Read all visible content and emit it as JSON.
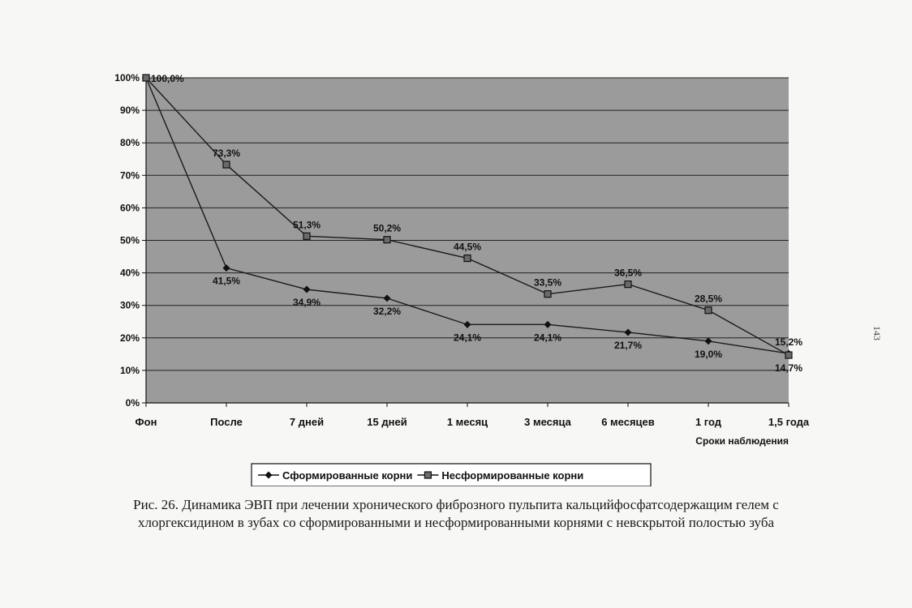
{
  "chart_data": {
    "type": "line",
    "categories": [
      "Фон",
      "После",
      "7 дней",
      "15 дней",
      "1 месяц",
      "3 месяца",
      "6 месяцев",
      "1 год",
      "1,5 года"
    ],
    "series": [
      {
        "name": "Сформированные корни",
        "values": [
          100.0,
          41.5,
          34.9,
          32.2,
          24.1,
          24.1,
          21.7,
          19.0,
          15.2
        ],
        "labels": [
          "100,0%",
          "41,5%",
          "34,9%",
          "32,2%",
          "24,1%",
          "24,1%",
          "21,7%",
          "19,0%",
          "15,2%"
        ],
        "marker": "diamond",
        "label_pos": [
          "",
          "below",
          "below",
          "below",
          "below",
          "below",
          "below",
          "below",
          "above"
        ]
      },
      {
        "name": "Несформированные корни",
        "values": [
          100.0,
          73.3,
          51.3,
          50.2,
          44.5,
          33.5,
          36.5,
          28.5,
          14.7
        ],
        "labels": [
          "100,0%",
          "73,3%",
          "51,3%",
          "50,2%",
          "44,5%",
          "33,5%",
          "36,5%",
          "28,5%",
          "14,7%"
        ],
        "marker": "square",
        "label_pos": [
          "right",
          "above",
          "above",
          "above",
          "above",
          "above",
          "above",
          "above",
          "below"
        ]
      }
    ],
    "yticks": [
      "0%",
      "10%",
      "20%",
      "30%",
      "40%",
      "50%",
      "60%",
      "70%",
      "80%",
      "90%",
      "100%"
    ],
    "ylim": [
      0,
      100
    ],
    "xlabel": "Сроки наблюдения",
    "ylabel": "",
    "grid": true,
    "legend": "bottom",
    "colors": {
      "plot_bg": "#9b9b9b",
      "line": "#1a1a1a",
      "grid": "#222222"
    }
  },
  "caption": {
    "line1": "Рис. 26. Динамика ЭВП при лечении хронического фиброзного пульпита кальцийфосфатсодержащим гелем с",
    "line2": "хлоргексидином в зубах со сформированными и несформированными корнями с невскрытой полостью зуба"
  },
  "page_number": "143"
}
